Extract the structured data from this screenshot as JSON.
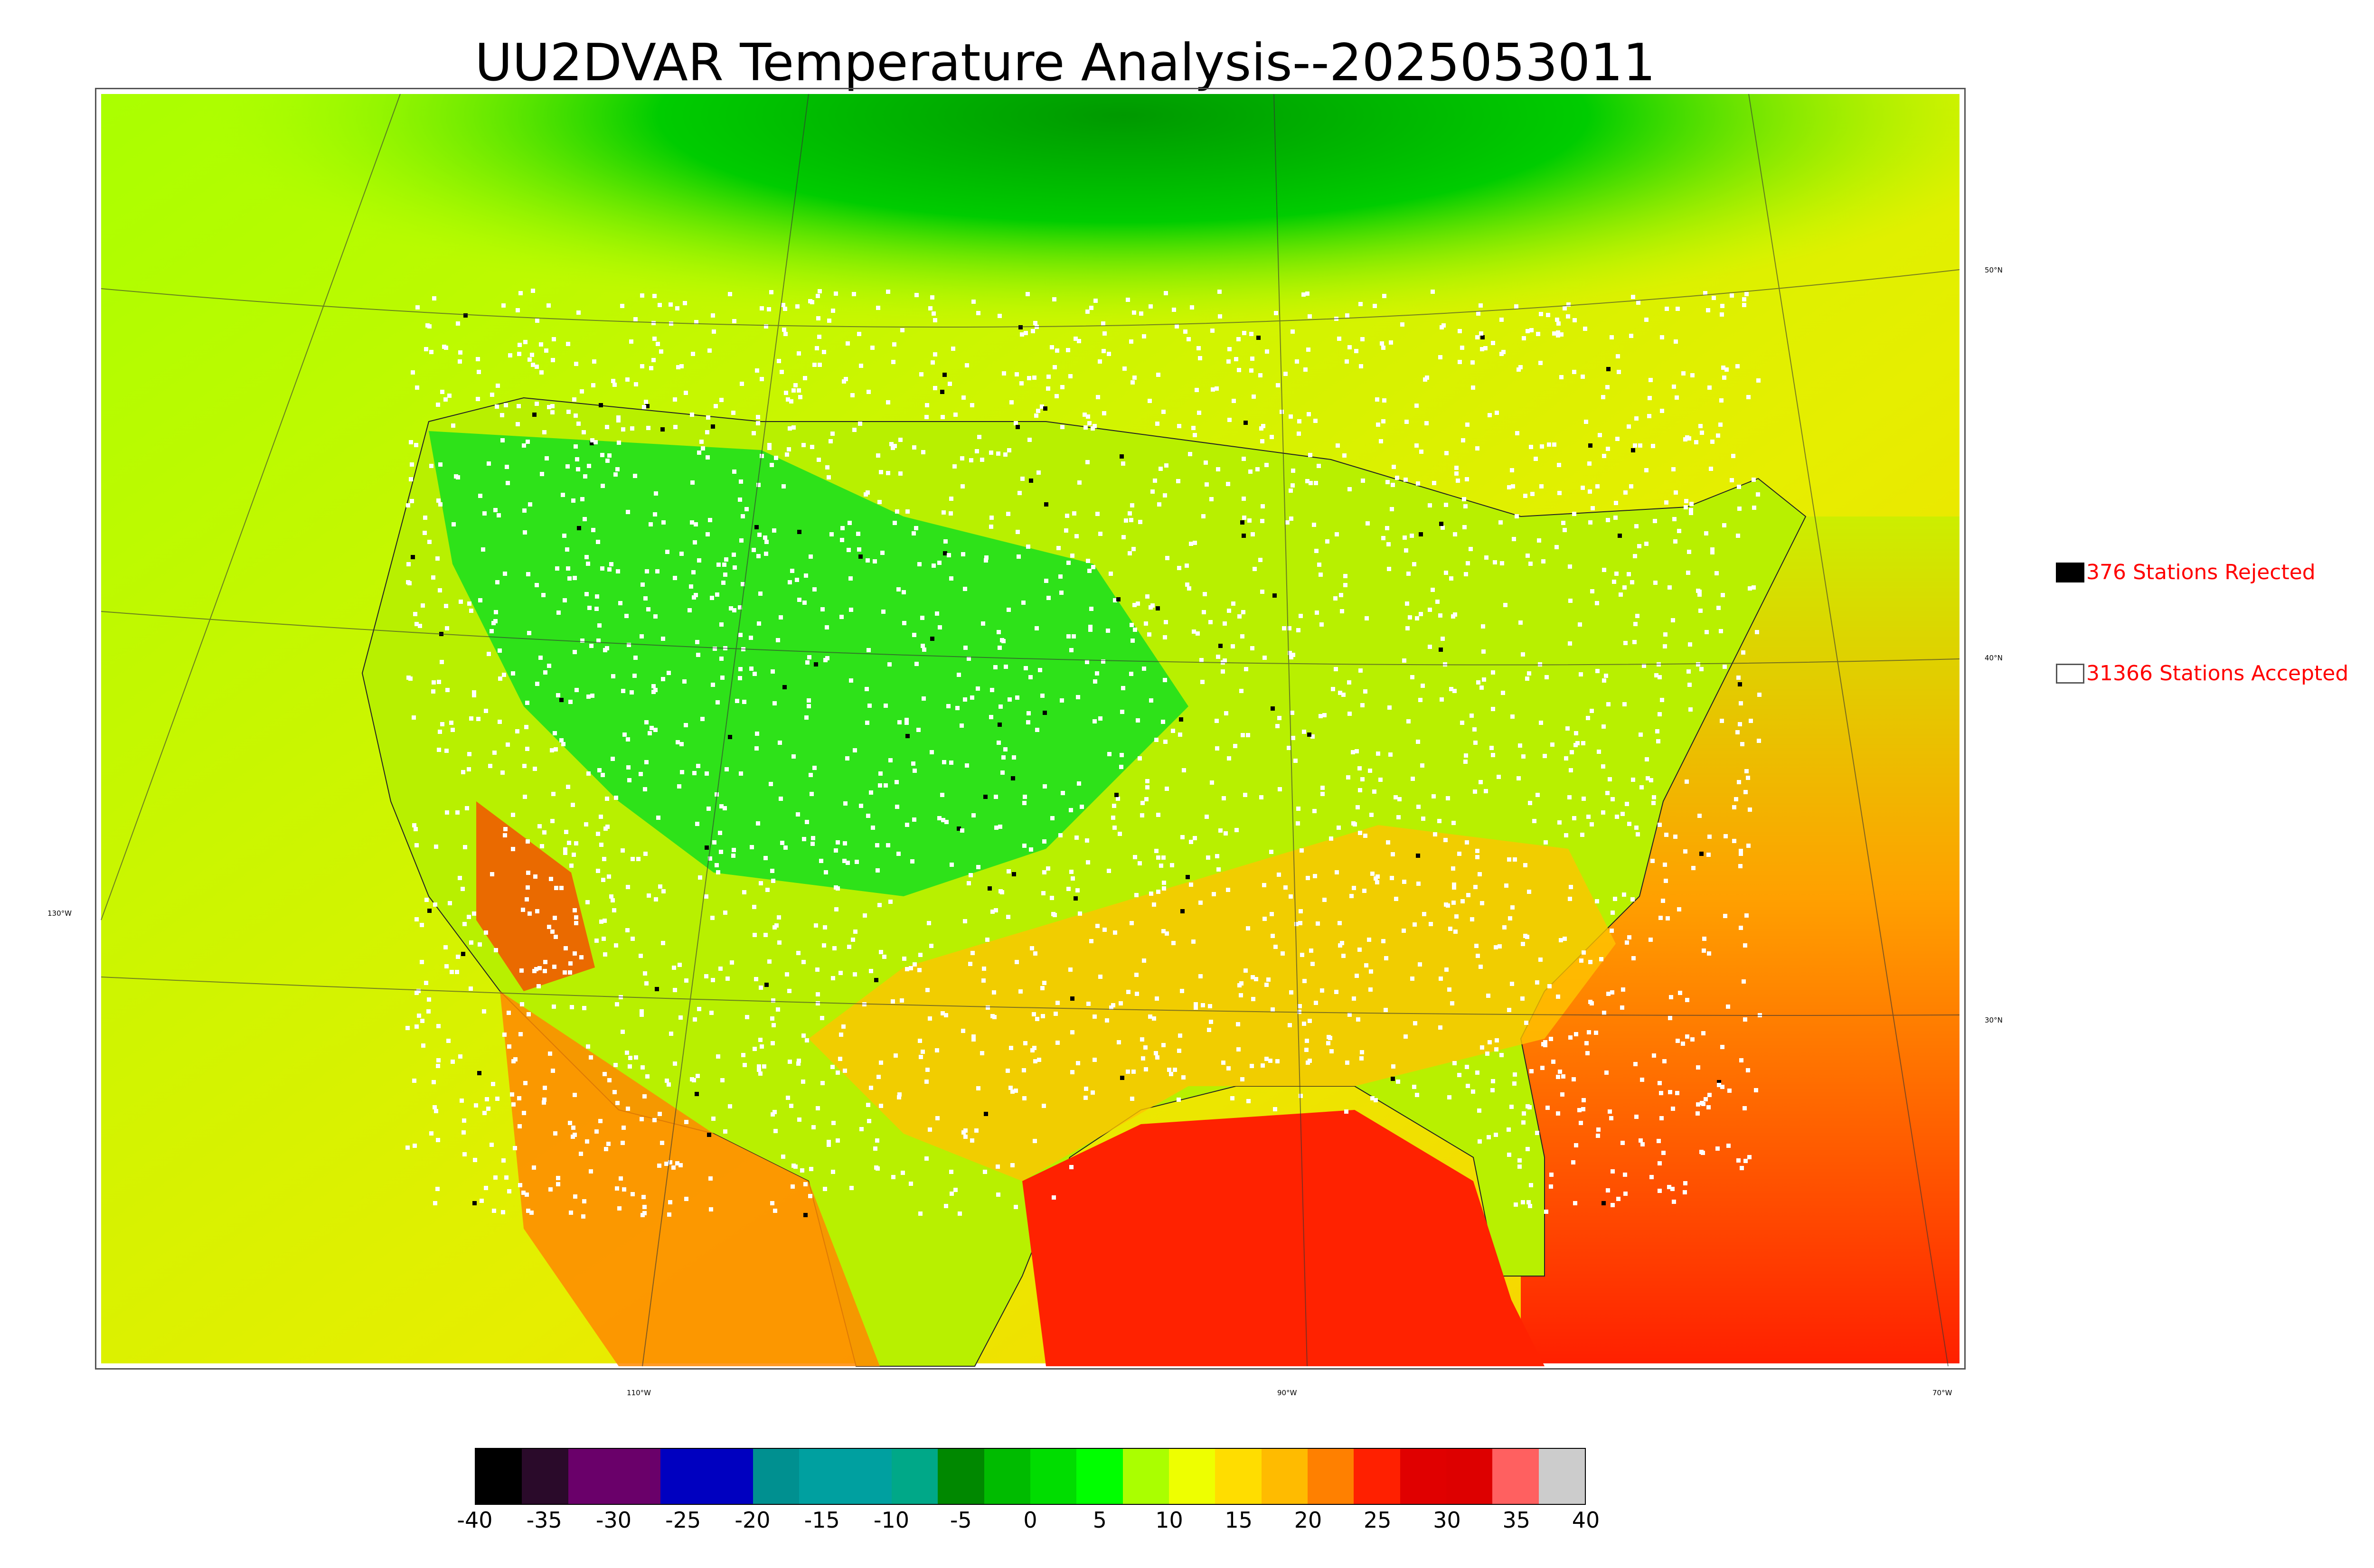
{
  "title": "UU2DVAR Temperature Analysis--2025053011",
  "legend": {
    "rejected_label": "376 Stations Rejected",
    "accepted_label": "31366 Stations Accepted",
    "text_color": "#ff0000"
  },
  "map": {
    "lon_labels": [
      "130°W",
      "110°W",
      "90°W",
      "70°W"
    ],
    "lat_labels": [
      "50°N",
      "40°N",
      "30°N"
    ],
    "colors": {
      "land_cool": "#00cc00",
      "land_mild": "#ccff00",
      "land_warm": "#ffcc00",
      "gulf_hot": "#ff2000",
      "ocean_mild": "#c8f000",
      "station_accepted": "#ffffff",
      "station_rejected": "#000000"
    }
  },
  "colorbar": {
    "min": -40,
    "max": 40,
    "tick_labels": [
      "-40",
      "-35",
      "-30",
      "-25",
      "-20",
      "-15",
      "-10",
      "-5",
      "0",
      "5",
      "10",
      "15",
      "20",
      "25",
      "30",
      "35",
      "40"
    ],
    "segment_colors": [
      "#000000",
      "#2a0a2a",
      "#6a006a",
      "#6a006a",
      "#0000c0",
      "#0000c0",
      "#009090",
      "#00a0a0",
      "#00a0a0",
      "#00a888",
      "#008800",
      "#00bb00",
      "#00dd00",
      "#00ff00",
      "#aaff00",
      "#eeff00",
      "#ffdd00",
      "#ffbb00",
      "#ff8000",
      "#ff2000",
      "#e00000",
      "#dd0000",
      "#ff6060",
      "#cccccc"
    ]
  }
}
